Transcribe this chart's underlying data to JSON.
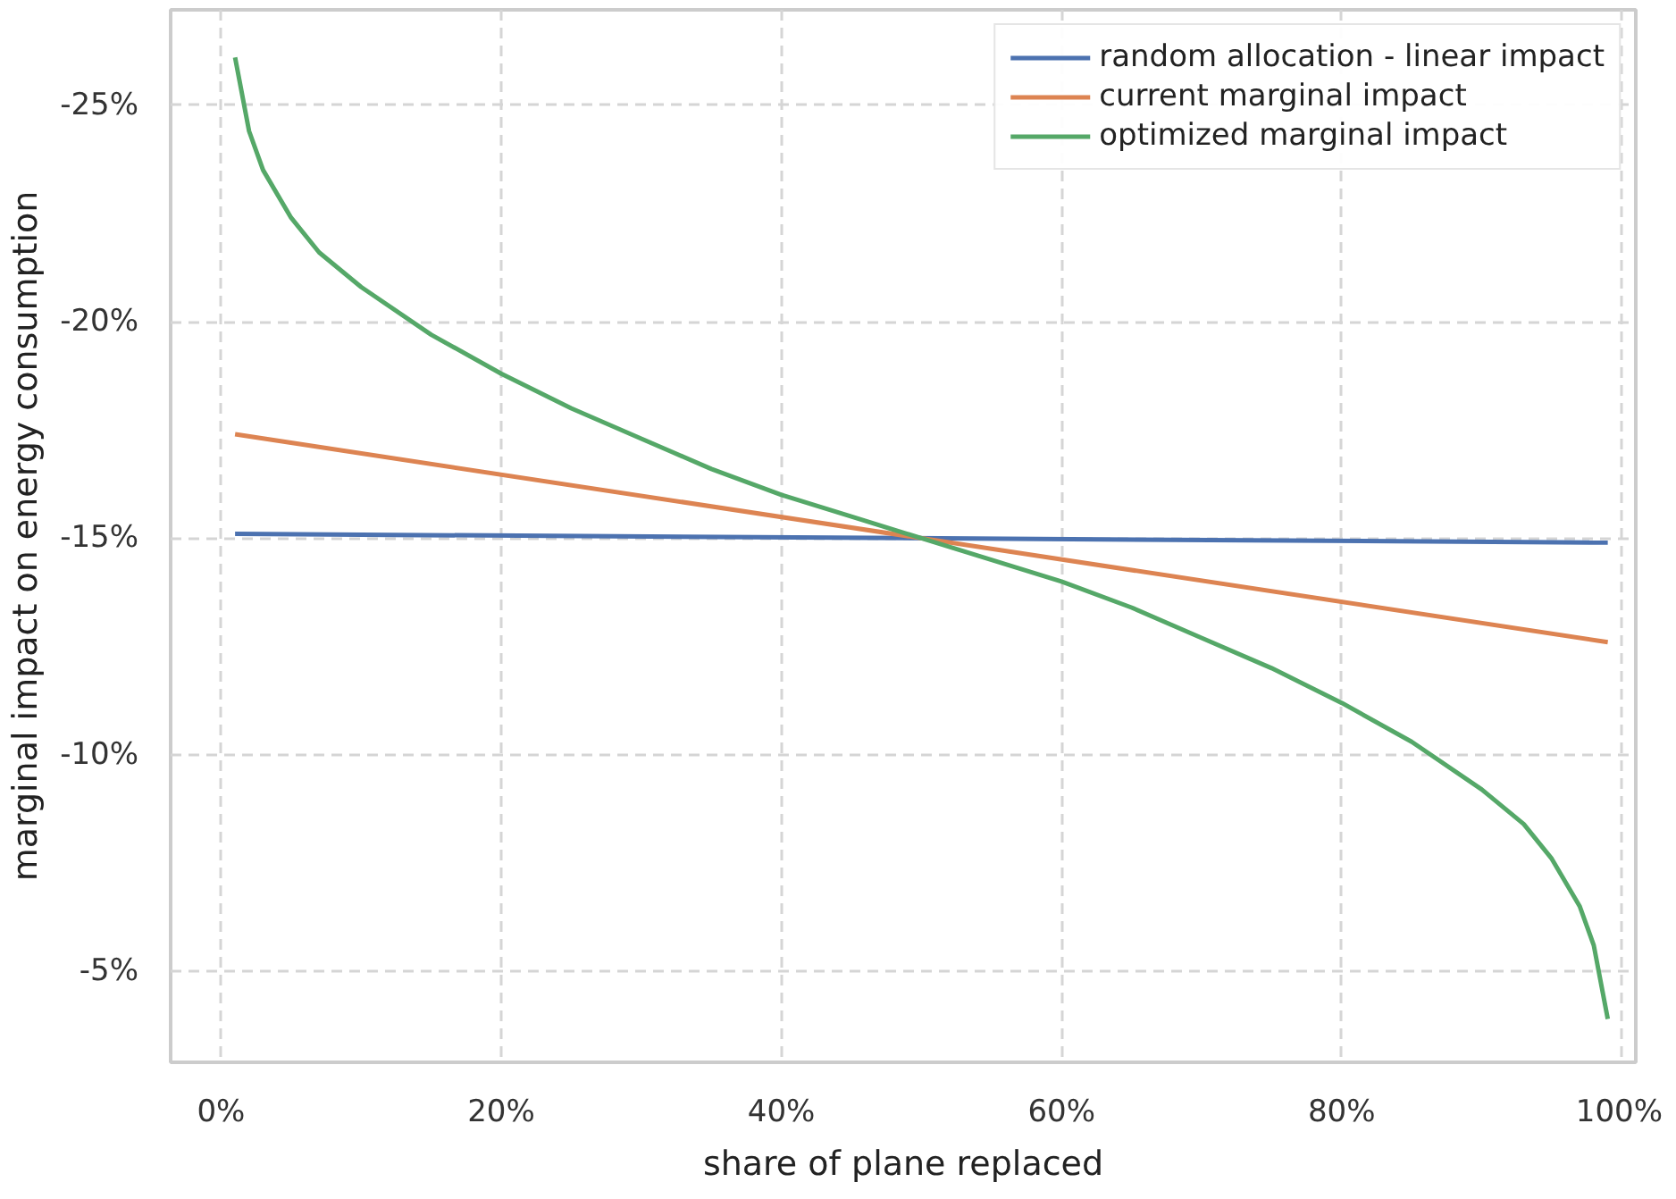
{
  "chart_data": {
    "type": "line",
    "xlabel": "share of plane replaced",
    "ylabel": "marginal impact on energy consumption",
    "xlim": [
      -3.6,
      101
    ],
    "ylim": [
      -2.9,
      -27.2
    ],
    "xticks": [
      {
        "value": 0,
        "label": "0%"
      },
      {
        "value": 20,
        "label": "20%"
      },
      {
        "value": 40,
        "label": "40%"
      },
      {
        "value": 60,
        "label": "60%"
      },
      {
        "value": 80,
        "label": "80%"
      },
      {
        "value": 100,
        "label": "100%"
      }
    ],
    "yticks": [
      {
        "value": -25,
        "label": "-25%"
      },
      {
        "value": -20,
        "label": "-20%"
      },
      {
        "value": -15,
        "label": "-15%"
      },
      {
        "value": -10,
        "label": "-10%"
      },
      {
        "value": -5,
        "label": "-5%"
      }
    ],
    "grid": true,
    "legend": "top right",
    "line_style": "solid",
    "marker": "none",
    "series": [
      {
        "name": "random allocation - linear impact",
        "color": "#4c72b0",
        "x": [
          1,
          99
        ],
        "values": [
          -15.1,
          -14.9
        ]
      },
      {
        "name": "current marginal impact",
        "color": "#dd8452",
        "x": [
          1,
          99
        ],
        "values": [
          -17.4,
          -12.6
        ]
      },
      {
        "name": "optimized marginal impact",
        "color": "#55a868",
        "x": [
          1,
          2,
          3,
          5,
          7,
          10,
          15,
          20,
          25,
          30,
          35,
          40,
          45,
          50,
          55,
          60,
          65,
          70,
          75,
          80,
          85,
          90,
          93,
          95,
          97,
          98,
          99
        ],
        "values": [
          -26.1,
          -24.4,
          -23.5,
          -22.4,
          -21.6,
          -20.8,
          -19.7,
          -18.8,
          -18.0,
          -17.3,
          -16.6,
          -16.0,
          -15.5,
          -15.0,
          -14.5,
          -14.0,
          -13.4,
          -12.7,
          -12.0,
          -11.2,
          -10.3,
          -9.2,
          -8.4,
          -7.6,
          -6.5,
          -5.6,
          -3.9
        ]
      }
    ]
  }
}
